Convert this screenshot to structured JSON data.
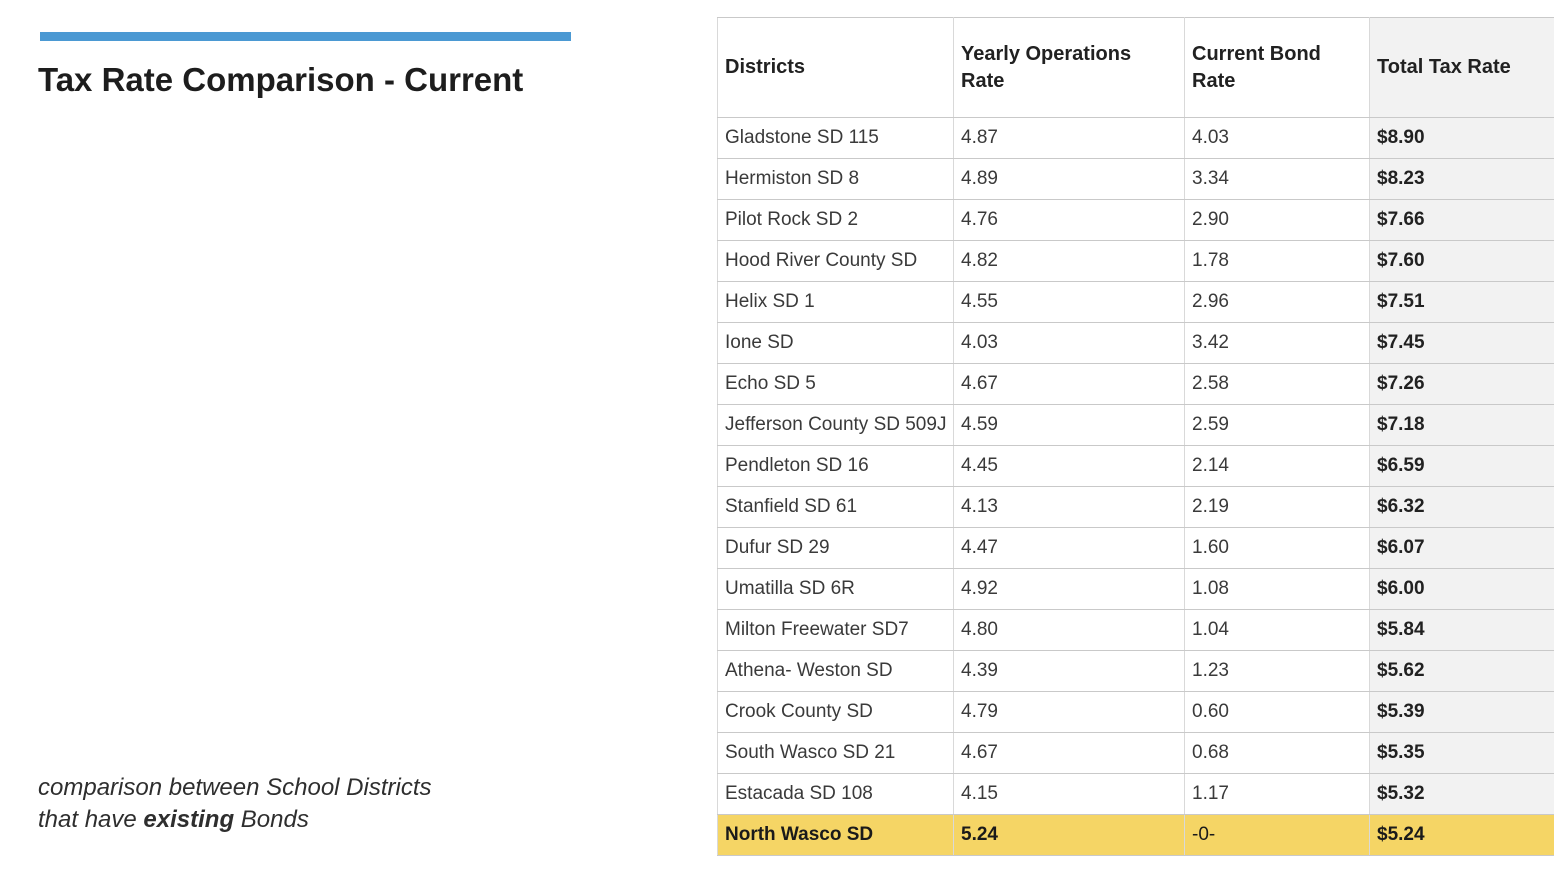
{
  "left_panel": {
    "accent_bar_color": "#4b99d3",
    "title": "Tax Rate Comparison - Current",
    "caption": {
      "line1": "comparison between School Districts",
      "line2_prefix": "that have ",
      "line2_bold": "existing",
      "line2_suffix": " Bonds"
    }
  },
  "table": {
    "headers": [
      "Districts",
      "Yearly Operations Rate",
      "Current Bond Rate",
      "Total Tax Rate"
    ],
    "total_column_bg": "#f2f2f2",
    "highlight_color": "#f5d565",
    "border_color": "#cccccc",
    "rows": [
      {
        "district": "Gladstone SD 115",
        "ops_rate": "4.87",
        "bond_rate": "4.03",
        "total": "$8.90"
      },
      {
        "district": "Hermiston SD 8",
        "ops_rate": "4.89",
        "bond_rate": "3.34",
        "total": "$8.23"
      },
      {
        "district": "Pilot Rock SD 2",
        "ops_rate": "4.76",
        "bond_rate": "2.90",
        "total": "$7.66"
      },
      {
        "district": "Hood River County SD",
        "ops_rate": "4.82",
        "bond_rate": "1.78",
        "total": "$7.60"
      },
      {
        "district": "Helix SD 1",
        "ops_rate": "4.55",
        "bond_rate": "2.96",
        "total": "$7.51"
      },
      {
        "district": "Ione SD",
        "ops_rate": "4.03",
        "bond_rate": "3.42",
        "total": "$7.45"
      },
      {
        "district": "Echo SD 5",
        "ops_rate": "4.67",
        "bond_rate": "2.58",
        "total": "$7.26"
      },
      {
        "district": "Jefferson County SD 509J",
        "ops_rate": "4.59",
        "bond_rate": "2.59",
        "total": "$7.18"
      },
      {
        "district": "Pendleton SD 16",
        "ops_rate": "4.45",
        "bond_rate": "2.14",
        "total": "$6.59"
      },
      {
        "district": "Stanfield SD 61",
        "ops_rate": "4.13",
        "bond_rate": "2.19",
        "total": "$6.32"
      },
      {
        "district": "Dufur SD 29",
        "ops_rate": "4.47",
        "bond_rate": "1.60",
        "total": "$6.07"
      },
      {
        "district": "Umatilla SD 6R",
        "ops_rate": "4.92",
        "bond_rate": "1.08",
        "total": "$6.00"
      },
      {
        "district": "Milton Freewater SD7",
        "ops_rate": "4.80",
        "bond_rate": "1.04",
        "total": "$5.84"
      },
      {
        "district": "Athena- Weston SD",
        "ops_rate": "4.39",
        "bond_rate": "1.23",
        "total": "$5.62"
      },
      {
        "district": "Crook County SD",
        "ops_rate": "4.79",
        "bond_rate": "0.60",
        "total": "$5.39"
      },
      {
        "district": "South Wasco SD 21",
        "ops_rate": "4.67",
        "bond_rate": "0.68",
        "total": "$5.35"
      },
      {
        "district": "Estacada SD 108",
        "ops_rate": "4.15",
        "bond_rate": "1.17",
        "total": "$5.32"
      },
      {
        "district": "North Wasco SD",
        "ops_rate": "5.24",
        "bond_rate": "-0-",
        "total": "$5.24",
        "highlight": true
      }
    ]
  }
}
